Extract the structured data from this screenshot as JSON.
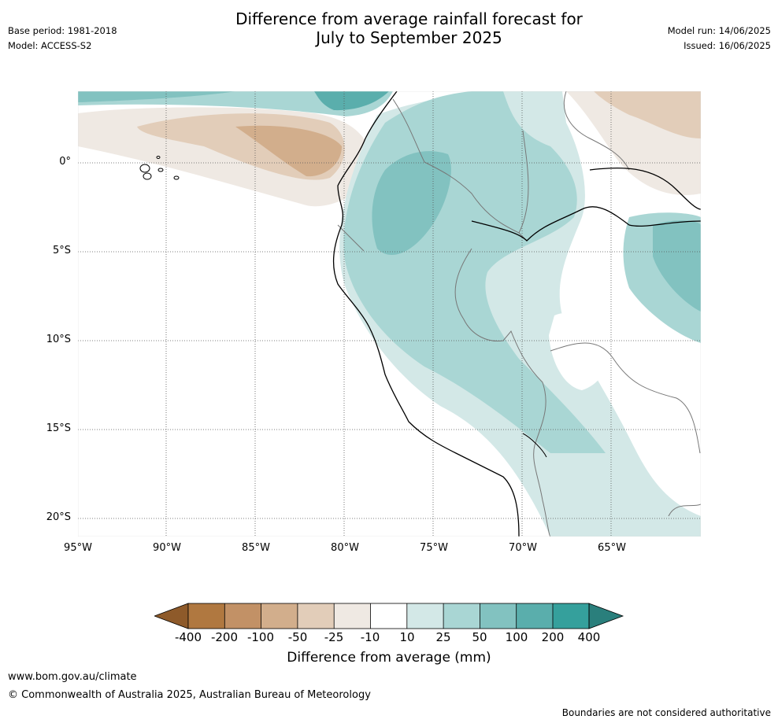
{
  "title_line1": "Difference from average rainfall forecast for",
  "title_line2": "July to September 2025",
  "meta_left": {
    "base_period": "Base period: 1981-2018",
    "model": "Model: ACCESS-S2"
  },
  "meta_right": {
    "model_run": "Model run: 14/06/2025",
    "issued": "Issued: 16/06/2025"
  },
  "lat_ticks": [
    "0°",
    "5°S",
    "10°S",
    "15°S",
    "20°S"
  ],
  "lon_ticks": [
    "95°W",
    "90°W",
    "85°W",
    "80°W",
    "75°W",
    "70°W",
    "65°W"
  ],
  "colorbar": {
    "labels": [
      "-400",
      "-200",
      "-100",
      "-50",
      "-25",
      "-10",
      "10",
      "25",
      "50",
      "100",
      "200",
      "400"
    ],
    "title": "Difference from average (mm)",
    "colors": [
      "#8e5a2a",
      "#b07840",
      "#c29166",
      "#d2ae8c",
      "#e2cdb9",
      "#efe9e3",
      "#ffffff",
      "#d3e8e7",
      "#a9d6d4",
      "#82c2c0",
      "#5aaeac",
      "#35a09c",
      "#2a7f7c"
    ]
  },
  "footer": {
    "site": "www.bom.gov.au/climate",
    "copyright": "© Commonwealth of Australia 2025, Australian Bureau of Meteorology",
    "note": "Boundaries are not considered authoritative"
  }
}
